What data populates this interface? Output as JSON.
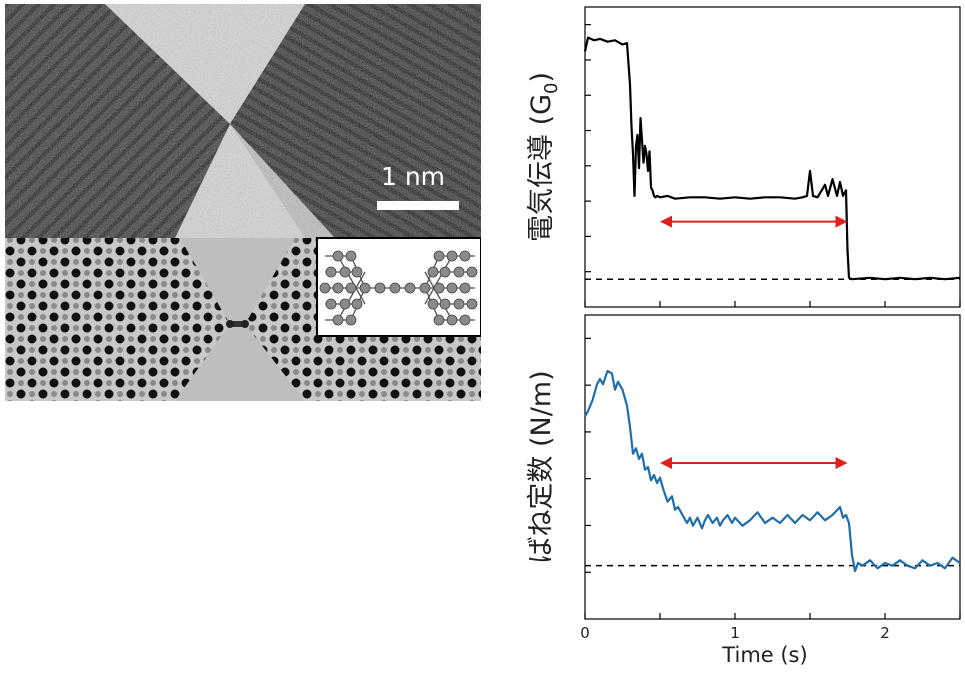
{
  "figure": {
    "scale_bar_label": "1 nm"
  },
  "chart_data": [
    {
      "type": "line",
      "ylabel": "電気伝導 (G",
      "ylabel_subscript": "0",
      "ylabel_suffix": ")",
      "xlim": [
        0,
        2.5
      ],
      "xticks": [
        0,
        0.5,
        1,
        1.5,
        2,
        2.5
      ],
      "xtick_labels_shown": false,
      "series": [
        {
          "color": "#000000",
          "x": [
            0.0,
            0.02,
            0.06,
            0.1,
            0.15,
            0.2,
            0.25,
            0.28,
            0.3,
            0.31,
            0.32,
            0.33,
            0.34,
            0.35,
            0.36,
            0.37,
            0.38,
            0.39,
            0.4,
            0.41,
            0.42,
            0.43,
            0.44,
            0.45,
            0.46,
            0.47,
            0.48,
            0.5,
            0.55,
            0.6,
            0.7,
            0.8,
            0.9,
            1.0,
            1.1,
            1.2,
            1.3,
            1.4,
            1.45,
            1.48,
            1.5,
            1.52,
            1.55,
            1.6,
            1.62,
            1.65,
            1.68,
            1.7,
            1.72,
            1.73,
            1.74,
            1.75,
            1.76,
            1.78,
            1.9,
            2.0,
            2.1,
            2.2,
            2.3,
            2.4,
            2.5
          ],
          "y": [
            8.2,
            8.7,
            8.6,
            8.65,
            8.55,
            8.6,
            8.45,
            8.5,
            7.0,
            5.5,
            4.5,
            3.0,
            4.8,
            5.2,
            4.0,
            5.8,
            5.0,
            4.2,
            4.8,
            4.5,
            3.9,
            4.6,
            3.3,
            3.2,
            3.0,
            2.95,
            3.0,
            2.95,
            3.0,
            2.9,
            2.95,
            2.95,
            2.9,
            2.95,
            2.9,
            2.95,
            2.95,
            2.9,
            2.95,
            3.0,
            3.9,
            3.0,
            2.95,
            3.4,
            3.0,
            3.6,
            3.0,
            3.5,
            3.0,
            3.1,
            3.2,
            1.05,
            0.05,
            0.0,
            0.05,
            0.0,
            0.05,
            0.0,
            0.05,
            0.0,
            0.05
          ]
        }
      ],
      "baseline": 0,
      "arrow": {
        "x_start": 0.5,
        "x_end": 1.75,
        "y": 2.0,
        "color": "#e0201b"
      }
    },
    {
      "type": "line",
      "ylabel": "ばね定数 (N/m)",
      "xlabel": "Time (s)",
      "xlim": [
        0,
        2.5
      ],
      "xticks": [
        0,
        0.5,
        1,
        1.5,
        2,
        2.5
      ],
      "xtick_labels": [
        "0",
        "1",
        "2"
      ],
      "series": [
        {
          "color": "#1f6fab",
          "x": [
            0.0,
            0.02,
            0.05,
            0.08,
            0.1,
            0.12,
            0.15,
            0.18,
            0.2,
            0.22,
            0.25,
            0.28,
            0.3,
            0.32,
            0.34,
            0.36,
            0.38,
            0.4,
            0.42,
            0.44,
            0.46,
            0.48,
            0.5,
            0.52,
            0.55,
            0.58,
            0.6,
            0.62,
            0.65,
            0.68,
            0.7,
            0.72,
            0.75,
            0.78,
            0.8,
            0.82,
            0.85,
            0.88,
            0.9,
            0.92,
            0.95,
            0.98,
            1.0,
            1.05,
            1.1,
            1.15,
            1.2,
            1.25,
            1.3,
            1.35,
            1.4,
            1.45,
            1.5,
            1.55,
            1.6,
            1.65,
            1.7,
            1.72,
            1.74,
            1.76,
            1.78,
            1.8,
            1.82,
            1.85,
            1.9,
            1.95,
            2.0,
            2.05,
            2.1,
            2.15,
            2.2,
            2.25,
            2.3,
            2.35,
            2.4,
            2.45,
            2.5
          ],
          "y": [
            2.8,
            2.9,
            3.1,
            3.4,
            3.5,
            3.4,
            3.65,
            3.6,
            3.3,
            3.45,
            3.3,
            3.0,
            2.6,
            2.1,
            2.2,
            2.0,
            2.1,
            1.8,
            1.85,
            1.6,
            1.7,
            1.55,
            1.65,
            1.45,
            1.2,
            1.3,
            1.05,
            1.1,
            0.95,
            0.8,
            0.9,
            0.75,
            0.9,
            0.7,
            0.85,
            0.95,
            0.8,
            0.9,
            0.75,
            0.85,
            0.95,
            0.8,
            0.9,
            0.75,
            0.85,
            1.0,
            0.8,
            0.9,
            0.8,
            0.95,
            0.8,
            0.95,
            0.85,
            1.0,
            0.85,
            0.95,
            1.1,
            0.9,
            0.95,
            0.8,
            0.2,
            -0.1,
            0.05,
            0.0,
            0.1,
            -0.05,
            0.05,
            0.0,
            0.1,
            0.0,
            -0.05,
            0.1,
            0.0,
            0.05,
            -0.05,
            0.15,
            0.05
          ]
        }
      ],
      "baseline": 0,
      "arrow": {
        "x_start": 0.5,
        "x_end": 1.75,
        "y": 2.0,
        "color": "#e0201b"
      }
    }
  ]
}
